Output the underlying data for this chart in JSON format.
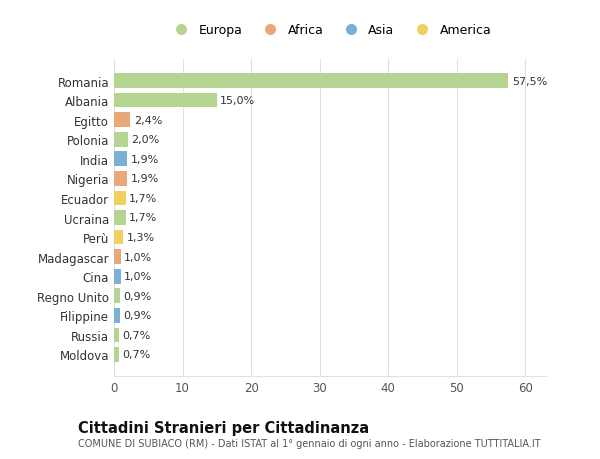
{
  "countries": [
    "Moldova",
    "Russia",
    "Filippine",
    "Regno Unito",
    "Cina",
    "Madagascar",
    "Perù",
    "Ucraina",
    "Ecuador",
    "Nigeria",
    "India",
    "Polonia",
    "Egitto",
    "Albania",
    "Romania"
  ],
  "values": [
    0.7,
    0.7,
    0.9,
    0.9,
    1.0,
    1.0,
    1.3,
    1.7,
    1.7,
    1.9,
    1.9,
    2.0,
    2.4,
    15.0,
    57.5
  ],
  "labels": [
    "0,7%",
    "0,7%",
    "0,9%",
    "0,9%",
    "1,0%",
    "1,0%",
    "1,3%",
    "1,7%",
    "1,7%",
    "1,9%",
    "1,9%",
    "2,0%",
    "2,4%",
    "15,0%",
    "57,5%"
  ],
  "continent": [
    "Europa",
    "Europa",
    "Asia",
    "Europa",
    "Asia",
    "Africa",
    "America",
    "Europa",
    "America",
    "Africa",
    "Asia",
    "Europa",
    "Africa",
    "Europa",
    "Europa"
  ],
  "colors": {
    "Europa": "#b5d491",
    "Africa": "#e8a878",
    "Asia": "#7bafd4",
    "America": "#f0d060"
  },
  "legend_labels": [
    "Europa",
    "Africa",
    "Asia",
    "America"
  ],
  "legend_colors": [
    "#b5d491",
    "#e8a878",
    "#7bafd4",
    "#f0d060"
  ],
  "background_color": "#ffffff",
  "grid_color": "#e0e0e0",
  "title": "Cittadini Stranieri per Cittadinanza",
  "subtitle": "COMUNE DI SUBIACO (RM) - Dati ISTAT al 1° gennaio di ogni anno - Elaborazione TUTTITALIA.IT",
  "xlim": [
    0,
    63
  ],
  "xticks": [
    0,
    10,
    20,
    30,
    40,
    50,
    60
  ]
}
